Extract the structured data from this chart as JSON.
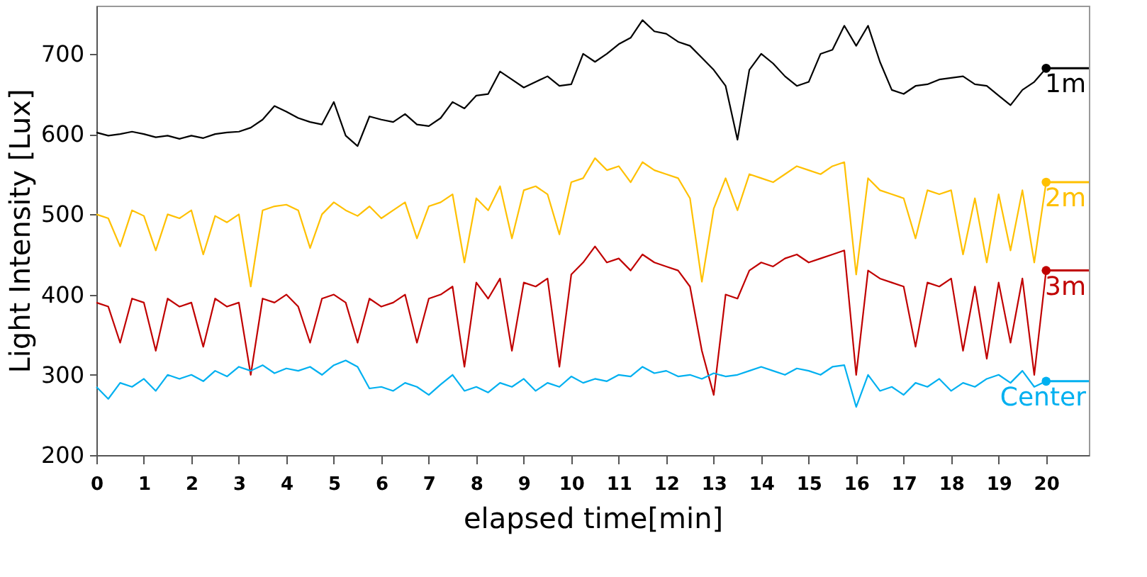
{
  "chart_data": {
    "type": "line",
    "xlabel": "elapsed time[min]",
    "ylabel": "Light Intensity [Lux]",
    "xlim": [
      0,
      20.9
    ],
    "xticks": [
      0,
      1,
      2,
      3,
      4,
      5,
      6,
      7,
      8,
      9,
      10,
      11,
      12,
      13,
      14,
      15,
      16,
      17,
      18,
      19,
      20
    ],
    "ylim": [
      200,
      760
    ],
    "yticks": [
      200,
      300,
      400,
      500,
      600,
      700
    ],
    "grid": false,
    "legend": "right",
    "marker": "none",
    "line_style": "solid",
    "x": [
      0,
      0.25,
      0.5,
      0.75,
      1,
      1.25,
      1.5,
      1.75,
      2,
      2.25,
      2.5,
      2.75,
      3,
      3.25,
      3.5,
      3.75,
      4,
      4.25,
      4.5,
      4.75,
      5,
      5.25,
      5.5,
      5.75,
      6,
      6.25,
      6.5,
      6.75,
      7,
      7.25,
      7.5,
      7.75,
      8,
      8.25,
      8.5,
      8.75,
      9,
      9.25,
      9.5,
      9.75,
      10,
      10.25,
      10.5,
      10.75,
      11,
      11.25,
      11.5,
      11.75,
      12,
      12.25,
      12.5,
      12.75,
      13,
      13.25,
      13.5,
      13.75,
      14,
      14.25,
      14.5,
      14.75,
      15,
      15.25,
      15.5,
      15.75,
      16,
      16.25,
      16.5,
      16.75,
      17,
      17.25,
      17.5,
      17.75,
      18,
      18.25,
      18.5,
      18.75,
      19,
      19.25,
      19.5,
      19.75,
      20
    ],
    "series": [
      {
        "name": "1m",
        "color": "#000000",
        "values": [
          602,
          598,
          600,
          603,
          600,
          596,
          598,
          594,
          598,
          595,
          600,
          602,
          603,
          608,
          618,
          635,
          628,
          620,
          615,
          612,
          640,
          598,
          585,
          622,
          618,
          615,
          625,
          612,
          610,
          620,
          640,
          632,
          648,
          650,
          678,
          668,
          658,
          665,
          672,
          660,
          662,
          700,
          690,
          700,
          712,
          720,
          742,
          728,
          725,
          715,
          710,
          695,
          680,
          660,
          593,
          680,
          700,
          688,
          672,
          660,
          665,
          700,
          705,
          735,
          710,
          735,
          690,
          655,
          650,
          660,
          662,
          668,
          670,
          672,
          662,
          660,
          648,
          636,
          655,
          665,
          682
        ]
      },
      {
        "name": "2m",
        "color": "#ffc000",
        "values": [
          500,
          495,
          460,
          505,
          498,
          455,
          500,
          495,
          505,
          450,
          498,
          490,
          500,
          410,
          505,
          510,
          512,
          505,
          458,
          500,
          515,
          505,
          498,
          510,
          495,
          505,
          515,
          470,
          510,
          515,
          525,
          440,
          520,
          505,
          535,
          470,
          530,
          535,
          525,
          475,
          540,
          545,
          570,
          555,
          560,
          540,
          565,
          555,
          550,
          545,
          520,
          416,
          507,
          545,
          505,
          550,
          545,
          540,
          550,
          560,
          555,
          550,
          560,
          565,
          425,
          545,
          530,
          525,
          520,
          470,
          530,
          525,
          530,
          450,
          520,
          440,
          525,
          455,
          530,
          440,
          540
        ]
      },
      {
        "name": "3m",
        "color": "#c00000",
        "values": [
          390,
          385,
          340,
          395,
          390,
          330,
          395,
          385,
          390,
          335,
          395,
          385,
          390,
          300,
          395,
          390,
          400,
          385,
          340,
          395,
          400,
          390,
          340,
          395,
          385,
          390,
          400,
          340,
          395,
          400,
          410,
          310,
          415,
          395,
          420,
          330,
          415,
          410,
          420,
          310,
          425,
          440,
          460,
          440,
          445,
          430,
          450,
          440,
          435,
          430,
          410,
          330,
          275,
          400,
          395,
          430,
          440,
          435,
          445,
          450,
          440,
          445,
          450,
          455,
          300,
          430,
          420,
          415,
          410,
          335,
          415,
          410,
          420,
          330,
          410,
          320,
          415,
          340,
          420,
          300,
          430
        ]
      },
      {
        "name": "Center",
        "color": "#00b0f0",
        "values": [
          285,
          270,
          290,
          285,
          295,
          280,
          300,
          295,
          300,
          292,
          305,
          298,
          310,
          305,
          312,
          302,
          308,
          305,
          310,
          300,
          312,
          318,
          310,
          283,
          285,
          280,
          290,
          285,
          275,
          288,
          300,
          280,
          285,
          278,
          290,
          285,
          295,
          280,
          290,
          285,
          298,
          290,
          295,
          292,
          300,
          298,
          310,
          302,
          305,
          298,
          300,
          295,
          302,
          298,
          300,
          305,
          310,
          305,
          300,
          308,
          305,
          300,
          310,
          312,
          260,
          300,
          280,
          285,
          275,
          290,
          285,
          295,
          280,
          290,
          285,
          295,
          300,
          290,
          305,
          285,
          292
        ]
      }
    ]
  }
}
